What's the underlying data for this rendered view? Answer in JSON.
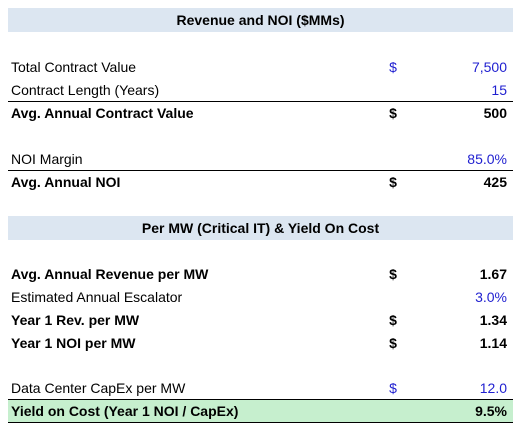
{
  "sections": [
    {
      "title": "Revenue and NOI ($MMs)",
      "rows": [
        {
          "label": "Total Contract Value",
          "currency": "$",
          "value": "7,500"
        },
        {
          "label": "Contract Length (Years)",
          "value": "15"
        },
        {
          "label": "Avg. Annual Contract Value",
          "currency": "$",
          "value": "500"
        },
        {
          "label": "NOI Margin",
          "value": "85.0%"
        },
        {
          "label": "Avg. Annual NOI",
          "currency": "$",
          "value": "425"
        }
      ]
    },
    {
      "title": "Per MW (Critical IT) & Yield On Cost",
      "rows": [
        {
          "label": "Avg. Annual Revenue per MW",
          "currency": "$",
          "value": "1.67"
        },
        {
          "label": "Estimated Annual Escalator",
          "value": "3.0%"
        },
        {
          "label": "Year 1 Rev. per MW",
          "currency": "$",
          "value": "1.34"
        },
        {
          "label": "Year 1 NOI per MW",
          "currency": "$",
          "value": "1.14"
        },
        {
          "label": "Data Center CapEx per MW",
          "currency": "$",
          "value": "12.0"
        },
        {
          "label": "Yield on Cost (Year 1 NOI / CapEx)",
          "value": "9.5%"
        }
      ]
    }
  ]
}
